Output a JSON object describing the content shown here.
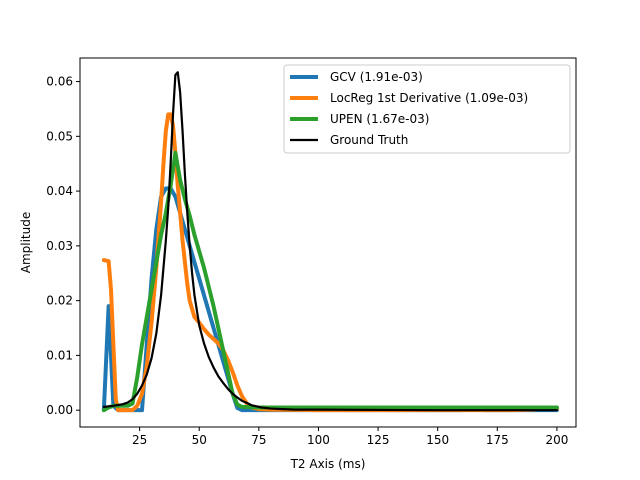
{
  "chart_data": {
    "type": "line",
    "xlabel": "T2 Axis (ms)",
    "ylabel": "Amplitude",
    "xlim": [
      0,
      208
    ],
    "ylim": [
      -0.00307,
      0.0643
    ],
    "xticks": [
      25,
      50,
      75,
      100,
      125,
      150,
      175,
      200
    ],
    "yticks": [
      0.0,
      0.01,
      0.02,
      0.03,
      0.04,
      0.05,
      0.06
    ],
    "ytick_labels": [
      "0.00",
      "0.01",
      "0.02",
      "0.03",
      "0.04",
      "0.05",
      "0.06"
    ],
    "legend_position": "top-right",
    "series": [
      {
        "name": "GCV  (1.91e-03)",
        "color": "#1f77b4",
        "width": 4,
        "points": [
          [
            10,
            0.0
          ],
          [
            12,
            0.019
          ],
          [
            14,
            0.0008
          ],
          [
            16,
            0.0
          ],
          [
            18,
            0.0
          ],
          [
            20,
            0.0
          ],
          [
            22,
            0.0
          ],
          [
            24,
            0.0
          ],
          [
            26,
            0.0
          ],
          [
            28,
            0.012
          ],
          [
            30,
            0.024
          ],
          [
            32,
            0.033
          ],
          [
            34,
            0.039
          ],
          [
            36,
            0.0405
          ],
          [
            38,
            0.0405
          ],
          [
            40,
            0.039
          ],
          [
            42,
            0.036
          ],
          [
            44,
            0.033
          ],
          [
            46,
            0.03
          ],
          [
            48,
            0.027
          ],
          [
            50,
            0.024
          ],
          [
            52,
            0.021
          ],
          [
            54,
            0.018
          ],
          [
            56,
            0.015
          ],
          [
            58,
            0.012
          ],
          [
            60,
            0.009
          ],
          [
            62,
            0.006
          ],
          [
            64,
            0.003
          ],
          [
            66,
            0.0004
          ],
          [
            68,
            0.0
          ],
          [
            75,
            0.0
          ],
          [
            100,
            0.0
          ],
          [
            150,
            0.0
          ],
          [
            160,
            0.0
          ],
          [
            165,
            0.0003
          ],
          [
            170,
            0.0
          ],
          [
            200,
            0.0
          ]
        ]
      },
      {
        "name": "LocReg  1st Derivative (1.09e-03)",
        "color": "#ff7f0e",
        "width": 4,
        "points": [
          [
            10,
            0.0274
          ],
          [
            12,
            0.0272
          ],
          [
            13,
            0.022
          ],
          [
            14,
            0.012
          ],
          [
            15,
            0.002
          ],
          [
            16,
            0.0
          ],
          [
            18,
            0.0
          ],
          [
            20,
            0.0
          ],
          [
            22,
            0.0
          ],
          [
            24,
            0.0008
          ],
          [
            26,
            0.003
          ],
          [
            28,
            0.008
          ],
          [
            30,
            0.016
          ],
          [
            32,
            0.026
          ],
          [
            34,
            0.038
          ],
          [
            35,
            0.045
          ],
          [
            36,
            0.051
          ],
          [
            37,
            0.054
          ],
          [
            38,
            0.054
          ],
          [
            39,
            0.052
          ],
          [
            40,
            0.047
          ],
          [
            41,
            0.041
          ],
          [
            42,
            0.036
          ],
          [
            43,
            0.031
          ],
          [
            44,
            0.027
          ],
          [
            45,
            0.023
          ],
          [
            46,
            0.02
          ],
          [
            48,
            0.017
          ],
          [
            50,
            0.016
          ],
          [
            52,
            0.0148
          ],
          [
            54,
            0.0138
          ],
          [
            56,
            0.013
          ],
          [
            58,
            0.0122
          ],
          [
            60,
            0.011
          ],
          [
            62,
            0.0092
          ],
          [
            64,
            0.007
          ],
          [
            66,
            0.0045
          ],
          [
            68,
            0.0025
          ],
          [
            70,
            0.0012
          ],
          [
            72,
            0.0005
          ],
          [
            75,
            0.0002
          ],
          [
            80,
            0.0001
          ],
          [
            100,
            0.0
          ],
          [
            150,
            0.0
          ],
          [
            180,
            0.0
          ],
          [
            190,
            0.0001
          ],
          [
            195,
            0.0004
          ],
          [
            200,
            0.0003
          ]
        ]
      },
      {
        "name": "UPEN  (1.67e-03)",
        "color": "#2ca02c",
        "width": 4,
        "points": [
          [
            10,
            0.0
          ],
          [
            12,
            0.0005
          ],
          [
            14,
            0.0008
          ],
          [
            16,
            0.0008
          ],
          [
            18,
            0.0008
          ],
          [
            20,
            0.0008
          ],
          [
            22,
            0.0012
          ],
          [
            24,
            0.006
          ],
          [
            26,
            0.012
          ],
          [
            28,
            0.017
          ],
          [
            30,
            0.022
          ],
          [
            32,
            0.027
          ],
          [
            34,
            0.032
          ],
          [
            36,
            0.036
          ],
          [
            38,
            0.041
          ],
          [
            40,
            0.047
          ],
          [
            42,
            0.042
          ],
          [
            44,
            0.0385
          ],
          [
            46,
            0.0355
          ],
          [
            48,
            0.032
          ],
          [
            50,
            0.029
          ],
          [
            52,
            0.026
          ],
          [
            54,
            0.0225
          ],
          [
            56,
            0.019
          ],
          [
            58,
            0.015
          ],
          [
            60,
            0.011
          ],
          [
            62,
            0.007
          ],
          [
            64,
            0.003
          ],
          [
            66,
            0.001
          ],
          [
            68,
            0.0006
          ],
          [
            75,
            0.0005
          ],
          [
            100,
            0.0005
          ],
          [
            150,
            0.0005
          ],
          [
            200,
            0.0005
          ]
        ]
      },
      {
        "name": "Ground Truth",
        "color": "#000000",
        "width": 2.2,
        "points": [
          [
            10,
            0.0006
          ],
          [
            14,
            0.0008
          ],
          [
            18,
            0.0011
          ],
          [
            20,
            0.0014
          ],
          [
            22,
            0.002
          ],
          [
            24,
            0.003
          ],
          [
            26,
            0.0045
          ],
          [
            28,
            0.0065
          ],
          [
            30,
            0.0095
          ],
          [
            32,
            0.014
          ],
          [
            34,
            0.021
          ],
          [
            35,
            0.026
          ],
          [
            36,
            0.031
          ],
          [
            37,
            0.037
          ],
          [
            38,
            0.045
          ],
          [
            39,
            0.054
          ],
          [
            40,
            0.0612
          ],
          [
            41,
            0.0617
          ],
          [
            42,
            0.058
          ],
          [
            43,
            0.051
          ],
          [
            44,
            0.043
          ],
          [
            45,
            0.036
          ],
          [
            46,
            0.03
          ],
          [
            47,
            0.025
          ],
          [
            48,
            0.021
          ],
          [
            50,
            0.0155
          ],
          [
            52,
            0.0122
          ],
          [
            54,
            0.0097
          ],
          [
            56,
            0.0078
          ],
          [
            58,
            0.0062
          ],
          [
            60,
            0.005
          ],
          [
            62,
            0.0039
          ],
          [
            64,
            0.003
          ],
          [
            66,
            0.0023
          ],
          [
            68,
            0.0017
          ],
          [
            70,
            0.0013
          ],
          [
            72,
            0.0009
          ],
          [
            74,
            0.0007
          ],
          [
            76,
            0.0005
          ],
          [
            80,
            0.0003
          ],
          [
            85,
            0.0002
          ],
          [
            90,
            0.0001
          ],
          [
            100,
            0.0001
          ],
          [
            150,
            0.0
          ],
          [
            200,
            0.0
          ]
        ]
      }
    ]
  }
}
